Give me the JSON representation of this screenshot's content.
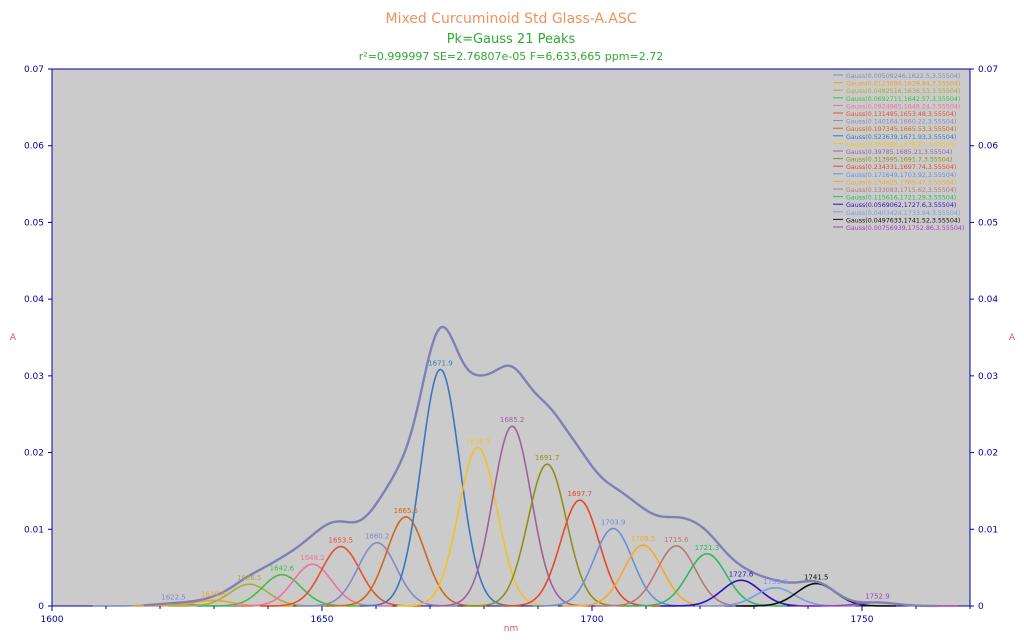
{
  "chart_data": {
    "type": "line",
    "title": "Mixed Curcuminoid Std Glass-A.ASC",
    "subtitle": "Pk=Gauss  21 Peaks",
    "stats": "r²=0.999997  SE=2.76807e-05  F=6,633,665  ppm=2.72",
    "xlabel": "nm",
    "ylabel": "A",
    "xlim": [
      1600,
      1770
    ],
    "ylim": [
      0,
      0.07
    ],
    "x_ticks": [
      "1600",
      "1650",
      "1700",
      "1750"
    ],
    "y_ticks": [
      "0",
      "0.01",
      "0.02",
      "0.03",
      "0.04",
      "0.05",
      "0.06",
      "0.07"
    ],
    "grid": false,
    "legend_position": "top-right",
    "peaks": [
      {
        "amp": 0.00509246,
        "center": 1622.5,
        "width": 3.55504,
        "label": "1622.5",
        "legend": "Gauss(0.00509246,1622.5,3.55504)",
        "color": "#7b8fc8"
      },
      {
        "amp": 0.0123096,
        "center": 1629.84,
        "width": 3.55504,
        "label": "1629.8",
        "legend": "Gauss(0.0123096,1629.84,3.55504)",
        "color": "#f0a030"
      },
      {
        "amp": 0.0482516,
        "center": 1636.53,
        "width": 3.55504,
        "label": "1636.5",
        "legend": "Gauss(0.0482516,1636.53,3.55504)",
        "color": "#a8b030"
      },
      {
        "amp": 0.0692711,
        "center": 1642.57,
        "width": 3.55504,
        "label": "1642.6",
        "legend": "Gauss(0.0692711,1642.57,3.55504)",
        "color": "#40c040"
      },
      {
        "amp": 0.0924985,
        "center": 1648.24,
        "width": 3.55504,
        "label": "1648.2",
        "legend": "Gauss(0.0924985,1648.24,3.55504)",
        "color": "#f070a0"
      },
      {
        "amp": 0.131495,
        "center": 1653.48,
        "width": 3.55504,
        "label": "1653.5",
        "legend": "Gauss(0.131495,1653.48,3.55504)",
        "color": "#e85030"
      },
      {
        "amp": 0.140164,
        "center": 1660.22,
        "width": 3.55504,
        "label": "1660.2",
        "legend": "Gauss(0.140164,1660.22,3.55504)",
        "color": "#8888c8"
      },
      {
        "amp": 0.197345,
        "center": 1665.53,
        "width": 3.55504,
        "label": "1665.5",
        "legend": "Gauss(0.197345,1665.53,3.55504)",
        "color": "#d06818"
      },
      {
        "amp": 0.523639,
        "center": 1671.93,
        "width": 3.55504,
        "label": "1671.9",
        "legend": "Gauss(0.523639,1671.93,3.55504)",
        "color": "#3878c0"
      },
      {
        "amp": 0.350984,
        "center": 1678.87,
        "width": 3.55504,
        "label": "1678.9",
        "legend": "Gauss(0.350984,1678.87,3.55504)",
        "color": "#f8c020"
      },
      {
        "amp": 0.39785,
        "center": 1685.21,
        "width": 3.55504,
        "label": "1685.2",
        "legend": "Gauss(0.39785,1685.21,3.55504)",
        "color": "#a060a0"
      },
      {
        "amp": 0.313995,
        "center": 1691.7,
        "width": 3.55504,
        "label": "1691.7",
        "legend": "Gauss(0.313995,1691.7,3.55504)",
        "color": "#909018"
      },
      {
        "amp": 0.234331,
        "center": 1697.74,
        "width": 3.55504,
        "label": "1697.7",
        "legend": "Gauss(0.234331,1697.74,3.55504)",
        "color": "#e84828"
      },
      {
        "amp": 0.171649,
        "center": 1703.92,
        "width": 3.55504,
        "label": "1703.9",
        "legend": "Gauss(0.171649,1703.92,3.55504)",
        "color": "#6890d8"
      },
      {
        "amp": 0.134625,
        "center": 1709.47,
        "width": 3.55504,
        "label": "1709.5",
        "legend": "Gauss(0.134625,1709.47,3.55504)",
        "color": "#f8a828"
      },
      {
        "amp": 0.133083,
        "center": 1715.62,
        "width": 3.55504,
        "label": "1715.6",
        "legend": "Gauss(0.133083,1715.62,3.55504)",
        "color": "#b87878"
      },
      {
        "amp": 0.115616,
        "center": 1721.29,
        "width": 3.55504,
        "label": "1721.3",
        "legend": "Gauss(0.115616,1721.29,3.55504)",
        "color": "#30b860"
      },
      {
        "amp": 0.0569062,
        "center": 1727.6,
        "width": 3.55504,
        "label": "1727.6",
        "legend": "Gauss(0.0569062,1727.6,3.55504)",
        "color": "#3010c0"
      },
      {
        "amp": 0.0403424,
        "center": 1733.94,
        "width": 3.55504,
        "label": "1733.9",
        "legend": "Gauss(0.0403424,1733.94,3.55504)",
        "color": "#7898f0"
      },
      {
        "amp": 0.0497633,
        "center": 1741.52,
        "width": 3.55504,
        "label": "1741.5",
        "legend": "Gauss(0.0497633,1741.52,3.55504)",
        "color": "#101010"
      },
      {
        "amp": 0.00756939,
        "center": 1752.86,
        "width": 3.55504,
        "label": "1752.9",
        "legend": "Gauss(0.00756939,1752.86,3.55504)",
        "color": "#a040c0"
      }
    ]
  },
  "colors": {
    "title": "#f0905a",
    "subtitle": "#30a830",
    "stats": "#30a830",
    "axis": "#0000a0",
    "plot_background": "#cbcbcb",
    "sum_curve": "#8080b8"
  }
}
